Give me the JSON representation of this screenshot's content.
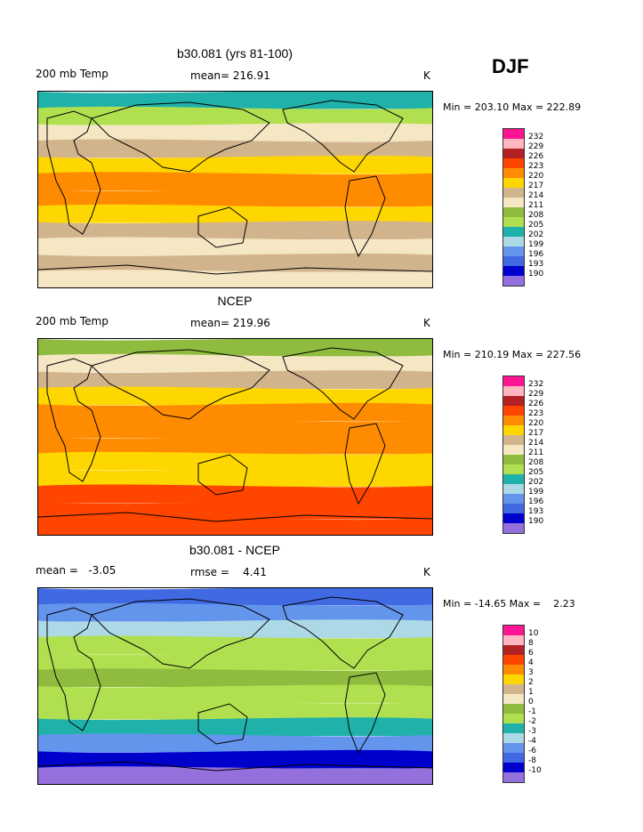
{
  "season": "DJF",
  "temp_colors": [
    "#ff1493",
    "#ffb6c1",
    "#b22222",
    "#ff4500",
    "#ff8c00",
    "#ffd700",
    "#d2b48c",
    "#f5e6c4",
    "#8fbc3f",
    "#b0e050",
    "#20b2aa",
    "#add8e6",
    "#6495ed",
    "#4169e1",
    "#0000cd",
    "#9370db"
  ],
  "panels": [
    {
      "title": "b30.081 (yrs 81-100)",
      "left_label": "200 mb Temp",
      "center_label": "mean= 216.91",
      "unit": "K",
      "minmax": "Min = 203.10 Max = 222.89",
      "legend_labels": [
        "232",
        "229",
        "226",
        "223",
        "220",
        "217",
        "214",
        "211",
        "208",
        "205",
        "202",
        "199",
        "196",
        "193",
        "190"
      ],
      "bands": [
        "#20b2aa",
        "#b0e050",
        "#f5e6c4",
        "#d2b48c",
        "#ffd700",
        "#ff8c00",
        "#ff8c00",
        "#ffd700",
        "#d2b48c",
        "#f5e6c4",
        "#d2b48c",
        "#f5e6c4"
      ]
    },
    {
      "title": "NCEP",
      "left_label": "200 mb Temp",
      "center_label": "mean= 219.96",
      "unit": "K",
      "minmax": "Min = 210.19 Max = 227.56",
      "legend_labels": [
        "232",
        "229",
        "226",
        "223",
        "220",
        "217",
        "214",
        "211",
        "208",
        "205",
        "202",
        "199",
        "196",
        "193",
        "190"
      ],
      "bands": [
        "#8fbc3f",
        "#f5e6c4",
        "#d2b48c",
        "#ffd700",
        "#ff8c00",
        "#ff8c00",
        "#ff8c00",
        "#ffd700",
        "#ffd700",
        "#ff4500",
        "#ff4500",
        "#ff4500"
      ]
    },
    {
      "title": "b30.081 - NCEP",
      "left_label": "mean =   -3.05",
      "center_label": "rmse =    4.41",
      "unit": "K",
      "minmax": "Min = -14.65 Max =    2.23",
      "legend_labels": [
        "10",
        "8",
        "6",
        "4",
        "3",
        "2",
        "1",
        "0",
        "-1",
        "-2",
        "-3",
        "-4",
        "-6",
        "-8",
        "-10"
      ],
      "bands": [
        "#4169e1",
        "#6495ed",
        "#add8e6",
        "#b0e050",
        "#b0e050",
        "#8fbc3f",
        "#b0e050",
        "#b0e050",
        "#20b2aa",
        "#6495ed",
        "#0000cd",
        "#9370db"
      ]
    }
  ]
}
